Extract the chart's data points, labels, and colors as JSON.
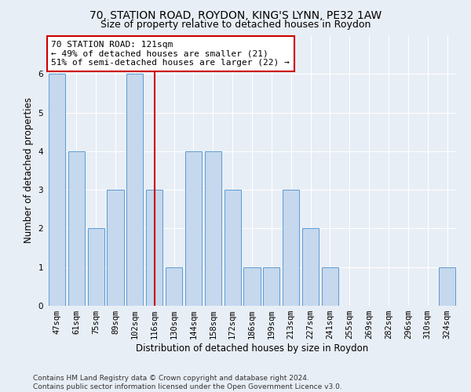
{
  "title_line1": "70, STATION ROAD, ROYDON, KING'S LYNN, PE32 1AW",
  "title_line2": "Size of property relative to detached houses in Roydon",
  "xlabel": "Distribution of detached houses by size in Roydon",
  "ylabel": "Number of detached properties",
  "categories": [
    "47sqm",
    "61sqm",
    "75sqm",
    "89sqm",
    "102sqm",
    "116sqm",
    "130sqm",
    "144sqm",
    "158sqm",
    "172sqm",
    "186sqm",
    "199sqm",
    "213sqm",
    "227sqm",
    "241sqm",
    "255sqm",
    "269sqm",
    "282sqm",
    "296sqm",
    "310sqm",
    "324sqm"
  ],
  "values": [
    6,
    4,
    2,
    3,
    6,
    3,
    1,
    4,
    4,
    3,
    1,
    1,
    3,
    2,
    1,
    0,
    0,
    0,
    0,
    0,
    1
  ],
  "bar_color": "#c5d8ed",
  "bar_edge_color": "#5b9bd5",
  "highlight_index": 5,
  "highlight_line_color": "#cc0000",
  "annotation_text": "70 STATION ROAD: 121sqm\n← 49% of detached houses are smaller (21)\n51% of semi-detached houses are larger (22) →",
  "annotation_box_color": "#cc0000",
  "ylim": [
    0,
    7
  ],
  "yticks": [
    0,
    1,
    2,
    3,
    4,
    5,
    6,
    7
  ],
  "footnote": "Contains HM Land Registry data © Crown copyright and database right 2024.\nContains public sector information licensed under the Open Government Licence v3.0.",
  "bg_color": "#e8eef5",
  "plot_bg_color": "#e8eef5",
  "grid_color": "#ffffff",
  "title_fontsize": 10,
  "subtitle_fontsize": 9,
  "axis_fontsize": 8.5,
  "tick_fontsize": 7.5,
  "footnote_fontsize": 6.5
}
